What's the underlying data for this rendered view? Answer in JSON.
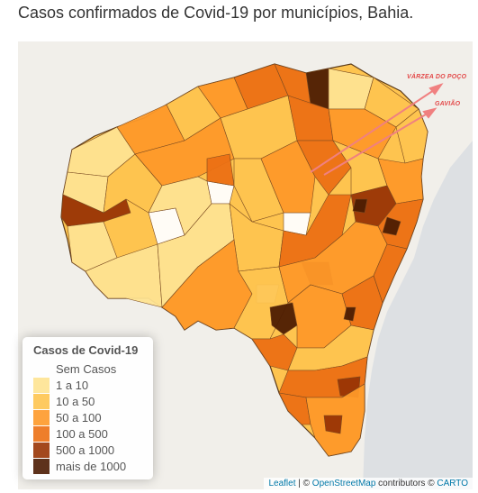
{
  "title": "Casos confirmados de Covid-19 por municípios, Bahia.",
  "legend": {
    "title": "Casos de Covid-19",
    "items": [
      {
        "label": "Sem Casos",
        "color": "#ffffff"
      },
      {
        "label": "1 a 10",
        "color": "#fee391"
      },
      {
        "label": "10 a 50",
        "color": "#fec44f"
      },
      {
        "label": "50 a 100",
        "color": "#fe9929"
      },
      {
        "label": "100 a 500",
        "color": "#ec7014"
      },
      {
        "label": "500 a 1000",
        "color": "#993404"
      },
      {
        "label": "mais de 1000",
        "color": "#4d1c02"
      }
    ]
  },
  "annotations": {
    "varzea": "VÁRZEA DO POÇO",
    "gaviao": "GAVIÃO"
  },
  "attribution": {
    "leaflet": "Leaflet",
    "sep": " | © ",
    "osm": "OpenStreetMap",
    "contrib": " contributors © ",
    "carto": "CARTO"
  },
  "colors": {
    "ocean": "#dde0e3",
    "land": "#f1efea",
    "border": "#5a3a1a",
    "arrow": "#f08080"
  }
}
